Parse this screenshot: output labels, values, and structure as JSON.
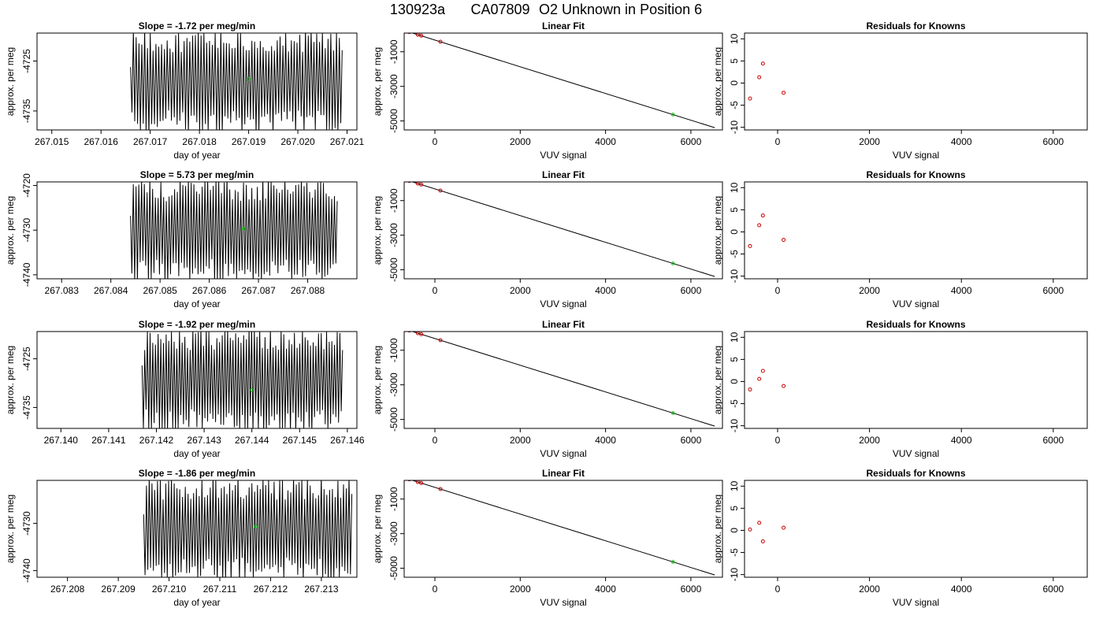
{
  "figure": {
    "title_parts": [
      "130923a",
      "CA07809",
      "O2 Unknown in Position  6"
    ]
  },
  "colors": {
    "trace": "#000000",
    "highlight": "#00cc00",
    "known_points": "#cc0000",
    "frame": "#000000"
  },
  "chart_data": [
    {
      "type": "line",
      "row": 0,
      "col": 0,
      "title": "Slope =  -1.72  per meg/min",
      "xlabel": "day of year",
      "ylabel": "approx. per meg",
      "xlim": [
        267.0147,
        267.0212
      ],
      "ylim": [
        -4738.8,
        -4719.4
      ],
      "xticks": [
        "267.015",
        "267.016",
        "267.017",
        "267.018",
        "267.019",
        "267.020",
        "267.021"
      ],
      "xtick_values": [
        267.015,
        267.016,
        267.017,
        267.018,
        267.019,
        267.02,
        267.021
      ],
      "yticks": [
        "-4725",
        "-4735"
      ],
      "ytick_values": [
        -4725,
        -4735
      ],
      "trace_start": 267.0166,
      "trace_end": 267.0209,
      "oscillations": 150,
      "highlight_point": {
        "x": 267.019,
        "y": -4728.6
      }
    },
    {
      "type": "line",
      "row": 0,
      "col": 1,
      "title": "Linear Fit",
      "xlabel": "VUV signal",
      "ylabel": "approx. per meg",
      "xlim": [
        -720,
        6740
      ],
      "ylim": [
        -5520,
        80
      ],
      "xticks": [
        "0",
        "2000",
        "4000",
        "6000"
      ],
      "xtick_values": [
        0,
        2000,
        4000,
        6000
      ],
      "yticks": [
        "-1000",
        "-3000",
        "-5000"
      ],
      "ytick_values": [
        -1000,
        -3000,
        -5000
      ],
      "fit_line": {
        "x": [
          -600,
          6560
        ],
        "y": [
          140,
          -5390
        ]
      },
      "known_points": {
        "x": [
          -600,
          -400,
          -320,
          130
        ],
        "y": [
          140,
          -15,
          -75,
          -420
        ]
      },
      "unknown_point": {
        "x": 5580,
        "y": -4630
      }
    },
    {
      "type": "scatter",
      "row": 0,
      "col": 2,
      "title": "Residuals for Knowns",
      "xlabel": "VUV signal",
      "ylabel": "approx. per meg",
      "xlim": [
        -720,
        6740
      ],
      "ylim": [
        -10.6,
        11.3
      ],
      "xticks": [
        "0",
        "2000",
        "4000",
        "6000"
      ],
      "xtick_values": [
        0,
        2000,
        4000,
        6000
      ],
      "yticks": [
        "-10",
        "-5",
        "0",
        "5",
        "10"
      ],
      "ytick_values": [
        -10,
        -5,
        0,
        5,
        10
      ],
      "x": [
        -600,
        -400,
        -320,
        130
      ],
      "y": [
        -3.5,
        1.3,
        4.4,
        -2.2
      ]
    },
    {
      "type": "line",
      "row": 1,
      "col": 0,
      "title": "Slope =  5.73  per meg/min",
      "xlabel": "day of year",
      "ylabel": "approx. per meg",
      "xlim": [
        267.0825,
        267.089
      ],
      "ylim": [
        -4740.9,
        -4719.2
      ],
      "xticks": [
        "267.083",
        "267.084",
        "267.085",
        "267.086",
        "267.087",
        "267.088"
      ],
      "xtick_values": [
        267.083,
        267.084,
        267.085,
        267.086,
        267.087,
        267.088
      ],
      "yticks": [
        "-4720",
        "-4730",
        "-4740"
      ],
      "ytick_values": [
        -4720,
        -4730,
        -4740
      ],
      "trace_start": 267.0844,
      "trace_end": 267.0886,
      "oscillations": 150,
      "highlight_point": {
        "x": 267.0867,
        "y": -4729.7
      }
    },
    {
      "type": "line",
      "row": 1,
      "col": 1,
      "title": "Linear Fit",
      "xlabel": "VUV signal",
      "ylabel": "approx. per meg",
      "xlim": [
        -720,
        6740
      ],
      "ylim": [
        -5520,
        80
      ],
      "xticks": [
        "0",
        "2000",
        "4000",
        "6000"
      ],
      "xtick_values": [
        0,
        2000,
        4000,
        6000
      ],
      "yticks": [
        "-1000",
        "-3000",
        "-5000"
      ],
      "ytick_values": [
        -1000,
        -3000,
        -5000
      ],
      "fit_line": {
        "x": [
          -600,
          6560
        ],
        "y": [
          140,
          -5390
        ]
      },
      "known_points": {
        "x": [
          -600,
          -400,
          -320,
          130
        ],
        "y": [
          140,
          -15,
          -75,
          -420
        ]
      },
      "unknown_point": {
        "x": 5580,
        "y": -4630
      }
    },
    {
      "type": "scatter",
      "row": 1,
      "col": 2,
      "title": "Residuals for Knowns",
      "xlabel": "VUV signal",
      "ylabel": "approx. per meg",
      "xlim": [
        -720,
        6740
      ],
      "ylim": [
        -10.6,
        11.3
      ],
      "xticks": [
        "0",
        "2000",
        "4000",
        "6000"
      ],
      "xtick_values": [
        0,
        2000,
        4000,
        6000
      ],
      "yticks": [
        "-10",
        "-5",
        "0",
        "5",
        "10"
      ],
      "ytick_values": [
        -10,
        -5,
        0,
        5,
        10
      ],
      "x": [
        -600,
        -400,
        -320,
        130
      ],
      "y": [
        -3.2,
        1.5,
        3.7,
        -1.8
      ]
    },
    {
      "type": "line",
      "row": 2,
      "col": 0,
      "title": "Slope =  -1.92  per meg/min",
      "xlabel": "day of year",
      "ylabel": "approx. per meg",
      "xlim": [
        267.1395,
        267.1462
      ],
      "ylim": [
        -4739.3,
        -4719.4
      ],
      "xticks": [
        "267.140",
        "267.141",
        "267.142",
        "267.143",
        "267.144",
        "267.145",
        "267.146"
      ],
      "xtick_values": [
        267.14,
        267.141,
        267.142,
        267.143,
        267.144,
        267.145,
        267.146
      ],
      "yticks": [
        "-4725",
        "-4735"
      ],
      "ytick_values": [
        -4725,
        -4735
      ],
      "trace_start": 267.1417,
      "trace_end": 267.1459,
      "oscillations": 150,
      "highlight_point": {
        "x": 267.144,
        "y": -4731.4
      }
    },
    {
      "type": "line",
      "row": 2,
      "col": 1,
      "title": "Linear Fit",
      "xlabel": "VUV signal",
      "ylabel": "approx. per meg",
      "xlim": [
        -720,
        6740
      ],
      "ylim": [
        -5520,
        80
      ],
      "xticks": [
        "0",
        "2000",
        "4000",
        "6000"
      ],
      "xtick_values": [
        0,
        2000,
        4000,
        6000
      ],
      "yticks": [
        "-1000",
        "-3000",
        "-5000"
      ],
      "ytick_values": [
        -1000,
        -3000,
        -5000
      ],
      "fit_line": {
        "x": [
          -600,
          6560
        ],
        "y": [
          140,
          -5390
        ]
      },
      "known_points": {
        "x": [
          -600,
          -400,
          -320,
          130
        ],
        "y": [
          140,
          -15,
          -75,
          -420
        ]
      },
      "unknown_point": {
        "x": 5580,
        "y": -4630
      }
    },
    {
      "type": "scatter",
      "row": 2,
      "col": 2,
      "title": "Residuals for Knowns",
      "xlabel": "VUV signal",
      "ylabel": "approx. per meg",
      "xlim": [
        -720,
        6740
      ],
      "ylim": [
        -10.6,
        11.3
      ],
      "xticks": [
        "0",
        "2000",
        "4000",
        "6000"
      ],
      "xtick_values": [
        0,
        2000,
        4000,
        6000
      ],
      "yticks": [
        "-10",
        "-5",
        "0",
        "5",
        "10"
      ],
      "ytick_values": [
        -10,
        -5,
        0,
        5,
        10
      ],
      "x": [
        -600,
        -400,
        -320,
        130
      ],
      "y": [
        -1.8,
        0.6,
        2.4,
        -1.0
      ]
    },
    {
      "type": "line",
      "row": 3,
      "col": 0,
      "title": "Slope =  -1.86  per meg/min",
      "xlabel": "day of year",
      "ylabel": "approx. per meg",
      "xlim": [
        267.2074,
        267.2137
      ],
      "ylim": [
        -4741.4,
        -4720.9
      ],
      "xticks": [
        "267.208",
        "267.209",
        "267.210",
        "267.211",
        "267.212",
        "267.213"
      ],
      "xtick_values": [
        267.208,
        267.209,
        267.21,
        267.211,
        267.212,
        267.213
      ],
      "yticks": [
        "-4730",
        "-4740"
      ],
      "ytick_values": [
        -4730,
        -4740
      ],
      "trace_start": 267.2095,
      "trace_end": 267.2136,
      "oscillations": 150,
      "highlight_point": {
        "x": 267.2117,
        "y": -4730.7
      }
    },
    {
      "type": "line",
      "row": 3,
      "col": 1,
      "title": "Linear Fit",
      "xlabel": "VUV signal",
      "ylabel": "approx. per meg",
      "xlim": [
        -720,
        6740
      ],
      "ylim": [
        -5520,
        80
      ],
      "xticks": [
        "0",
        "2000",
        "4000",
        "6000"
      ],
      "xtick_values": [
        0,
        2000,
        4000,
        6000
      ],
      "yticks": [
        "-1000",
        "-3000",
        "-5000"
      ],
      "ytick_values": [
        -1000,
        -3000,
        -5000
      ],
      "fit_line": {
        "x": [
          -600,
          6560
        ],
        "y": [
          140,
          -5390
        ]
      },
      "known_points": {
        "x": [
          -600,
          -400,
          -320,
          130
        ],
        "y": [
          140,
          -15,
          -75,
          -420
        ]
      },
      "unknown_point": {
        "x": 5580,
        "y": -4630
      }
    },
    {
      "type": "scatter",
      "row": 3,
      "col": 2,
      "title": "Residuals for Knowns",
      "xlabel": "VUV signal",
      "ylabel": "approx. per meg",
      "xlim": [
        -720,
        6740
      ],
      "ylim": [
        -10.6,
        11.3
      ],
      "xticks": [
        "0",
        "2000",
        "4000",
        "6000"
      ],
      "xtick_values": [
        0,
        2000,
        4000,
        6000
      ],
      "yticks": [
        "-10",
        "-5",
        "0",
        "5",
        "10"
      ],
      "ytick_values": [
        -10,
        -5,
        0,
        5,
        10
      ],
      "x": [
        -600,
        -400,
        -320,
        130
      ],
      "y": [
        0.2,
        1.7,
        -2.5,
        0.6
      ]
    }
  ]
}
